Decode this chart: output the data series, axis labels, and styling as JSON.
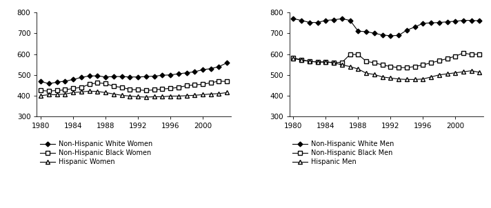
{
  "years": [
    1980,
    1981,
    1982,
    1983,
    1984,
    1985,
    1986,
    1987,
    1988,
    1989,
    1990,
    1991,
    1992,
    1993,
    1994,
    1995,
    1996,
    1997,
    1998,
    1999,
    2000,
    2001,
    2002,
    2003
  ],
  "women": {
    "white": [
      468,
      458,
      465,
      470,
      478,
      488,
      495,
      495,
      490,
      492,
      492,
      490,
      490,
      492,
      494,
      498,
      500,
      505,
      510,
      515,
      525,
      530,
      540,
      558
    ],
    "black": [
      425,
      422,
      425,
      428,
      435,
      440,
      455,
      462,
      458,
      445,
      440,
      430,
      428,
      425,
      428,
      432,
      435,
      440,
      448,
      452,
      455,
      462,
      470,
      468
    ],
    "hispanic": [
      400,
      405,
      405,
      408,
      415,
      418,
      422,
      420,
      415,
      408,
      402,
      398,
      395,
      393,
      395,
      395,
      398,
      398,
      400,
      402,
      405,
      408,
      410,
      415
    ]
  },
  "men": {
    "white": [
      770,
      762,
      752,
      752,
      762,
      765,
      770,
      762,
      710,
      708,
      700,
      692,
      688,
      690,
      715,
      730,
      748,
      750,
      752,
      755,
      758,
      762,
      762,
      760
    ],
    "black": [
      582,
      572,
      565,
      562,
      562,
      560,
      560,
      598,
      598,
      565,
      558,
      548,
      540,
      535,
      535,
      540,
      548,
      558,
      568,
      578,
      590,
      605,
      598,
      600
    ],
    "hispanic": [
      578,
      572,
      565,
      562,
      562,
      558,
      548,
      540,
      528,
      508,
      502,
      490,
      485,
      480,
      478,
      478,
      480,
      490,
      500,
      505,
      510,
      515,
      520,
      512
    ]
  },
  "xlim": [
    1979.5,
    2003.5
  ],
  "ylim": [
    300,
    800
  ],
  "yticks": [
    300,
    400,
    500,
    600,
    700,
    800
  ],
  "xticks": [
    1980,
    1984,
    1988,
    1992,
    1996,
    2000
  ],
  "legend_women": [
    "Non-Hispanic White Women",
    "Non-Hispanic Black Women",
    "Hispanic Women"
  ],
  "legend_men": [
    "Non-Hispanic White Men",
    "Non-Hispanic Black Men",
    "Hispanic Men"
  ],
  "figsize": [
    7.12,
    3.02
  ],
  "dpi": 100
}
